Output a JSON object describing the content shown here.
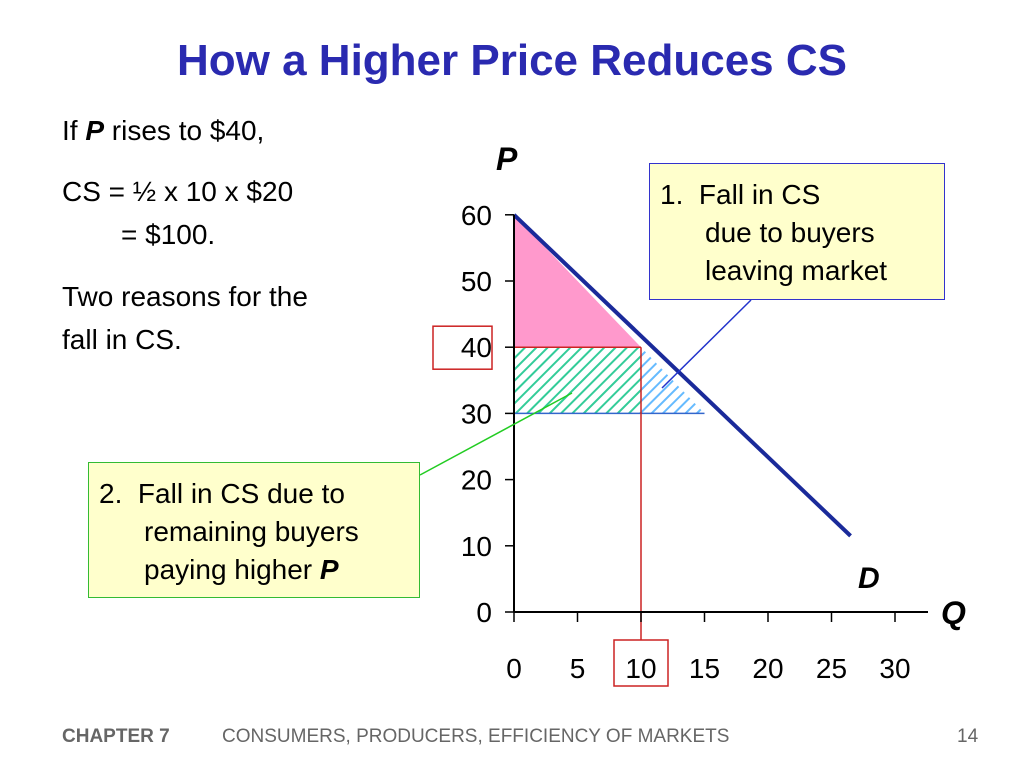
{
  "slide": {
    "title": "How a Higher Price Reduces CS",
    "text_line1_a": "If ",
    "text_line1_p": "P",
    "text_line1_b": " rises to $40,",
    "cs_line1": "CS = ½ x 10 x $20",
    "cs_line2": "= $100.",
    "reasons_line1": "Two reasons for the",
    "reasons_line2": "fall in CS."
  },
  "callout1": {
    "number": "1.",
    "line1": "Fall in CS",
    "line2": "due to buyers",
    "line3": "leaving market"
  },
  "callout2": {
    "number": "2.",
    "line1": "Fall in CS due to",
    "line2": "remaining buyers",
    "line3_a": "paying higher ",
    "line3_p": "P"
  },
  "footer": {
    "chapter": "CHAPTER 7",
    "subtitle": "CONSUMERS, PRODUCERS, EFFICIENCY OF MARKETS",
    "page": "14"
  },
  "colors": {
    "title": "#2a2ab0",
    "demand_line": "#1a2a9a",
    "cs_remaining": "#ff99cc",
    "hatch_green": "#33cc99",
    "hatch_blue": "#66bbff",
    "highlight_red": "#cc2222"
  },
  "chart_data": {
    "type": "line",
    "ylabel": "P",
    "xlabel": "Q",
    "series": [
      {
        "name": "D",
        "points": [
          [
            0,
            60
          ],
          [
            26.5,
            11.5
          ]
        ]
      }
    ],
    "xlim": [
      0,
      32
    ],
    "ylim": [
      0,
      60
    ],
    "x_ticks": [
      "0",
      "5",
      "10",
      "15",
      "20",
      "25",
      "30"
    ],
    "y_ticks": [
      "0",
      "10",
      "20",
      "30",
      "40",
      "50",
      "60"
    ],
    "highlighted_x_tick": "10",
    "highlighted_y_tick": "40",
    "areas": [
      {
        "kind": "remaining CS",
        "polygon": [
          [
            0,
            60
          ],
          [
            0,
            40
          ],
          [
            10,
            40
          ]
        ]
      },
      {
        "kind": "loss from higher P",
        "polygon": [
          [
            0,
            40
          ],
          [
            10,
            40
          ],
          [
            10,
            30
          ],
          [
            0,
            30
          ]
        ]
      },
      {
        "kind": "loss from buyers leaving",
        "polygon": [
          [
            10,
            40
          ],
          [
            15,
            30
          ],
          [
            10,
            30
          ]
        ]
      }
    ],
    "reference_lines": [
      {
        "orientation": "horizontal",
        "y": 40,
        "x_to": 10
      },
      {
        "orientation": "horizontal",
        "y": 30,
        "x_to": 15
      },
      {
        "orientation": "vertical",
        "x": 10,
        "y_from": 0,
        "y_to": 40
      }
    ]
  }
}
